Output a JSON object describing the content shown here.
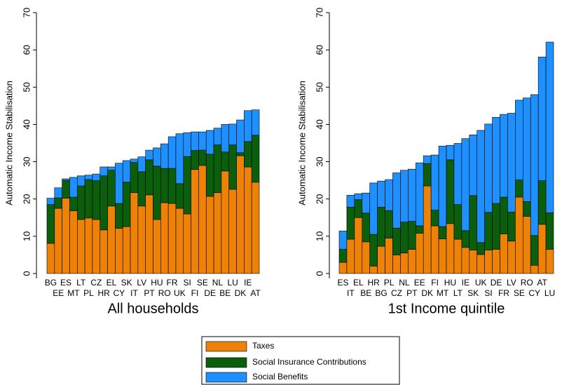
{
  "chart_data": [
    {
      "type": "bar",
      "stacked": true,
      "title": "All households",
      "y_label": "Automatic Income Stabilisation",
      "ylim": [
        0,
        70
      ],
      "yticks": [
        0,
        10,
        20,
        30,
        40,
        50,
        60,
        70
      ],
      "categories": [
        "BG",
        "EE",
        "ES",
        "MT",
        "LT",
        "PL",
        "CZ",
        "HR",
        "EL",
        "CY",
        "SK",
        "IT",
        "LV",
        "PT",
        "HU",
        "RO",
        "FR",
        "UK",
        "SI",
        "FI",
        "SE",
        "DE",
        "NL",
        "BE",
        "LU",
        "DK",
        "IE",
        "AT"
      ],
      "series": [
        {
          "name": "Taxes",
          "color": "#ee8208",
          "values": [
            8.1,
            17.5,
            20.2,
            16.8,
            14.5,
            14.9,
            14.5,
            11.7,
            18.1,
            12.1,
            12.6,
            21.7,
            18.1,
            21.1,
            14.5,
            19,
            18.8,
            17.5,
            16,
            27.9,
            29,
            20.7,
            21.7,
            27.5,
            22.6,
            31.6,
            28.6,
            24.5
          ]
        },
        {
          "name": "Social Insurance Contributions",
          "color": "#0b5e0b",
          "values": [
            10.4,
            2.8,
            4.8,
            3.7,
            9,
            10.3,
            10.4,
            14.5,
            9.6,
            6.7,
            11.9,
            8.1,
            9.2,
            9.4,
            14.3,
            9.2,
            9.4,
            6.6,
            15.4,
            5.1,
            4.1,
            11.3,
            12.8,
            5.1,
            11.9,
            0.8,
            6.8,
            12.6
          ]
        },
        {
          "name": "Social Benefits",
          "color": "#1e90ff",
          "values": [
            1.7,
            2.7,
            0.4,
            5.3,
            2.7,
            1.2,
            1.8,
            2.4,
            0.9,
            10.8,
            5.8,
            0.9,
            4,
            2.6,
            4.9,
            6.6,
            8.5,
            13.4,
            6.4,
            5,
            4.9,
            6.4,
            4.5,
            7.4,
            5.6,
            8.8,
            8.3,
            6.8
          ]
        }
      ]
    },
    {
      "type": "bar",
      "stacked": true,
      "title": "1st Income quintile",
      "y_label": "Automatic Income Stabilisation",
      "ylim": [
        0,
        70
      ],
      "yticks": [
        0,
        10,
        20,
        30,
        40,
        50,
        60,
        70
      ],
      "categories": [
        "ES",
        "IT",
        "EL",
        "BE",
        "HR",
        "BG",
        "PL",
        "CZ",
        "NL",
        "PT",
        "EE",
        "DK",
        "FI",
        "MT",
        "HU",
        "LT",
        "IE",
        "SK",
        "UK",
        "SI",
        "DE",
        "FR",
        "LV",
        "SE",
        "RO",
        "CY",
        "AT",
        "LU"
      ],
      "series": [
        {
          "color": "#ee8208",
          "values": [
            3,
            9.2,
            15,
            8.5,
            2,
            7.3,
            9.5,
            5,
            5.5,
            6.5,
            10.8,
            23.5,
            12.8,
            9.3,
            13.4,
            9.2,
            7,
            6.3,
            5.1,
            6.3,
            6.5,
            10.6,
            8.7,
            20.5,
            15.3,
            2.2,
            13.2,
            6.5
          ]
        },
        {
          "color": "#0b5e0b",
          "values": [
            3.5,
            8.6,
            4.8,
            7.7,
            8.5,
            10.5,
            7.4,
            7.2,
            8.3,
            7.5,
            2,
            6,
            4.2,
            3.3,
            17.1,
            9.3,
            4.5,
            14.6,
            3.2,
            10.1,
            12.3,
            9.9,
            7.8,
            4.6,
            4,
            8,
            11.7,
            9.8
          ]
        },
        {
          "color": "#1e90ff",
          "values": [
            4.9,
            3.2,
            1.6,
            5.4,
            13.8,
            7,
            8.3,
            14.8,
            13.9,
            14,
            16.9,
            2.1,
            14.8,
            21.6,
            3.9,
            16.4,
            24.7,
            16.3,
            30.1,
            23.7,
            23.1,
            22.2,
            26.5,
            21.4,
            27.8,
            37.8,
            33.2,
            45.8
          ]
        }
      ]
    }
  ]
}
